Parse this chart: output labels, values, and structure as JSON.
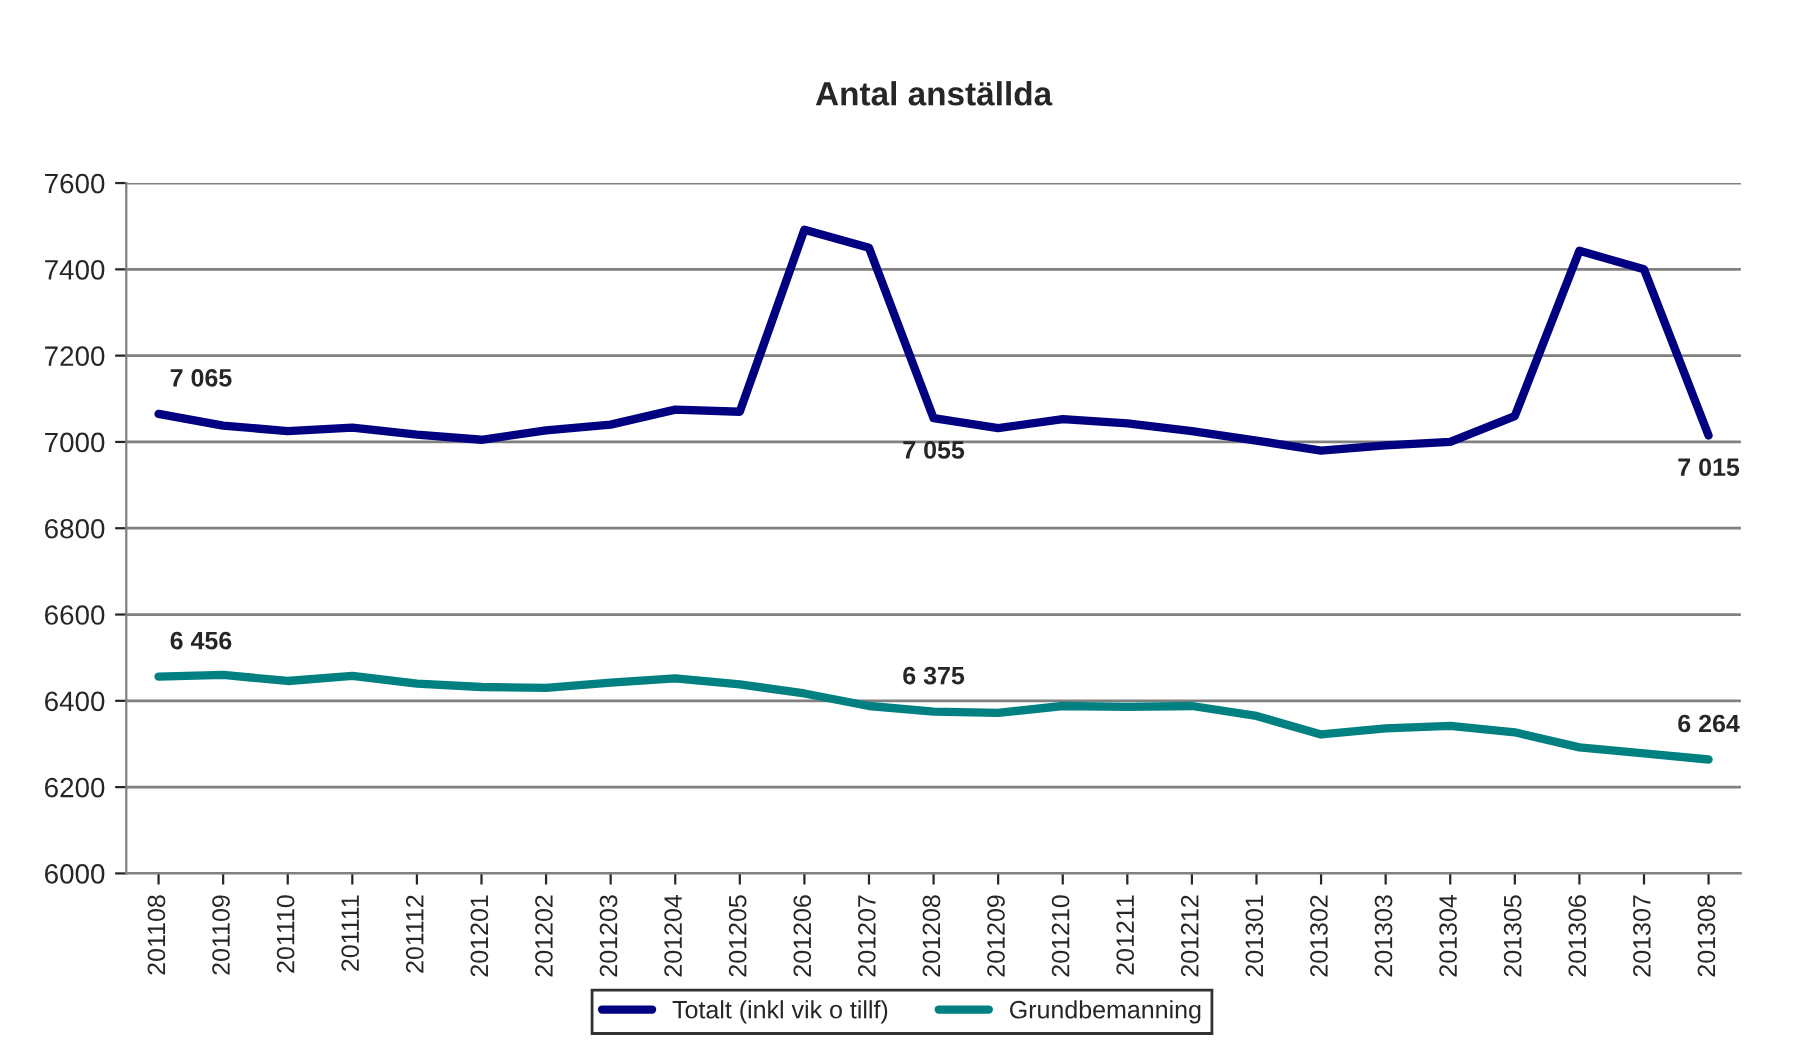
{
  "chart_data": {
    "type": "line",
    "title": "Antal anställda",
    "categories": [
      "201108",
      "201109",
      "201110",
      "201111",
      "201112",
      "201201",
      "201202",
      "201203",
      "201204",
      "201205",
      "201206",
      "201207",
      "201208",
      "201209",
      "201210",
      "201211",
      "201212",
      "201301",
      "201302",
      "201303",
      "201304",
      "201305",
      "201306",
      "201307",
      "201308"
    ],
    "series": [
      {
        "name": "Totalt (inkl vik o tillf)",
        "color": "#000080",
        "values": [
          7065,
          7038,
          7025,
          7033,
          7017,
          7005,
          7027,
          7040,
          7075,
          7070,
          7492,
          7450,
          7055,
          7032,
          7053,
          7043,
          7025,
          7003,
          6980,
          6992,
          7000,
          7060,
          7443,
          7400,
          7015
        ],
        "value_labels": [
          "7 065",
          null,
          null,
          null,
          null,
          null,
          null,
          null,
          null,
          null,
          null,
          null,
          "7 055",
          null,
          null,
          null,
          null,
          null,
          null,
          null,
          null,
          null,
          null,
          null,
          "7 015"
        ]
      },
      {
        "name": "Grundbemanning",
        "color": "#008080",
        "values": [
          6456,
          6460,
          6446,
          6458,
          6440,
          6432,
          6430,
          6442,
          6452,
          6438,
          6417,
          6388,
          6375,
          6372,
          6388,
          6386,
          6388,
          6365,
          6322,
          6336,
          6342,
          6327,
          6292,
          6278,
          6264
        ],
        "value_labels": [
          "6 456",
          null,
          null,
          null,
          null,
          null,
          null,
          null,
          null,
          null,
          null,
          null,
          "6 375",
          null,
          null,
          null,
          null,
          null,
          null,
          null,
          null,
          null,
          null,
          null,
          "6 264"
        ]
      }
    ],
    "ylim": [
      6000,
      7600
    ],
    "yticks": [
      6000,
      6200,
      6400,
      6600,
      6800,
      7000,
      7200,
      7400,
      7600
    ],
    "grid": "y",
    "legend": "bottom",
    "marker": "none",
    "line_style": "solid"
  }
}
